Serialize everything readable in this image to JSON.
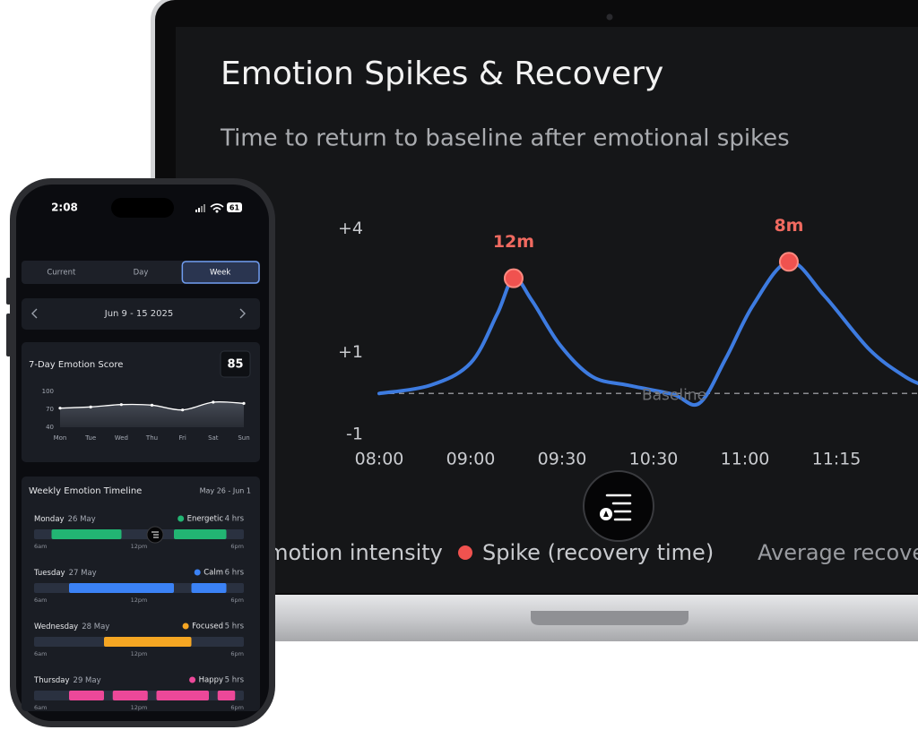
{
  "laptop": {
    "title": "Emotion Spikes & Recovery",
    "subtitle": "Time to return to baseline after emotional spikes",
    "chart": {
      "type": "line",
      "categories": [
        "08:00",
        "09:00",
        "09:30",
        "10:30",
        "11:00",
        "11:15"
      ],
      "xlim": [
        0,
        5.9
      ],
      "ylim": [
        -1.3,
        4.6
      ],
      "yticks": [
        {
          "value": 4,
          "label": "+4"
        },
        {
          "value": 1,
          "label": "+1"
        },
        -1
      ],
      "baseline": {
        "value": 0,
        "label": "Baseline"
      },
      "series": [
        {
          "name": "Emotion intensity",
          "color": "#3d7be0",
          "x": [
            0,
            0.56,
            1,
            1.29,
            1.47,
            1.67,
            1.98,
            2.33,
            2.72,
            3.21,
            3.5,
            3.79,
            4.09,
            4.48,
            4.87,
            5.36,
            5.75,
            5.95
          ],
          "values": [
            0,
            0.2,
            0.74,
            1.93,
            2.8,
            2.26,
            1.17,
            0.41,
            0.2,
            -0.02,
            -0.24,
            0.85,
            2.15,
            3.2,
            2.37,
            1.07,
            0.41,
            0.2
          ]
        }
      ],
      "spikes": {
        "name": "Spike (recovery time)",
        "color": "#f0524f",
        "x": [
          1.47,
          4.48
        ],
        "values": [
          2.8,
          3.2
        ],
        "value_labels": [
          "12m",
          "8m"
        ]
      },
      "average_label": "Average recovery"
    }
  },
  "phone": {
    "time": "2:08",
    "battery": "61",
    "tabs": {
      "options": [
        "Current",
        "Day",
        "Week"
      ],
      "active": 2
    },
    "date_range": "Jun 9 - 15 2025",
    "score_card": {
      "title": "7-Day Emotion Score",
      "score": 85,
      "chart": {
        "type": "line",
        "categories": [
          "Mon",
          "Tue",
          "Wed",
          "Thu",
          "Fri",
          "Sat",
          "Sun"
        ],
        "values": [
          72,
          74,
          78,
          77,
          69,
          82,
          80
        ],
        "ylim": [
          40,
          100
        ],
        "yticks": [
          40,
          70,
          100
        ],
        "color": "#ffffff"
      }
    },
    "timeline": {
      "title": "Weekly Emotion Timeline",
      "range": "May 26 - Jun 1",
      "xlim": [
        6,
        18
      ],
      "xticks": [
        {
          "value": 6,
          "label": "6am"
        },
        {
          "value": 12,
          "label": "12pm"
        },
        {
          "value": 18,
          "label": "6pm"
        }
      ],
      "rows": [
        {
          "day": "Monday",
          "date": "26 May",
          "emotion": "Energetic",
          "color": "#22b573",
          "duration": "4 hrs",
          "segments": [
            [
              7,
              11
            ],
            [
              14,
              17
            ]
          ]
        },
        {
          "day": "Tuesday",
          "date": "27 May",
          "emotion": "Calm",
          "color": "#3b82f6",
          "duration": "6 hrs",
          "segments": [
            [
              8,
              14
            ],
            [
              15,
              17
            ]
          ]
        },
        {
          "day": "Wednesday",
          "date": "28 May",
          "emotion": "Focused",
          "color": "#f5a623",
          "duration": "5 hrs",
          "segments": [
            [
              10,
              15
            ]
          ]
        },
        {
          "day": "Thursday",
          "date": "29 May",
          "emotion": "Happy",
          "color": "#ec4899",
          "duration": "5 hrs",
          "segments": [
            [
              8,
              10
            ],
            [
              10.5,
              12.5
            ],
            [
              13,
              16
            ],
            [
              16.5,
              17.5
            ]
          ]
        }
      ]
    }
  }
}
